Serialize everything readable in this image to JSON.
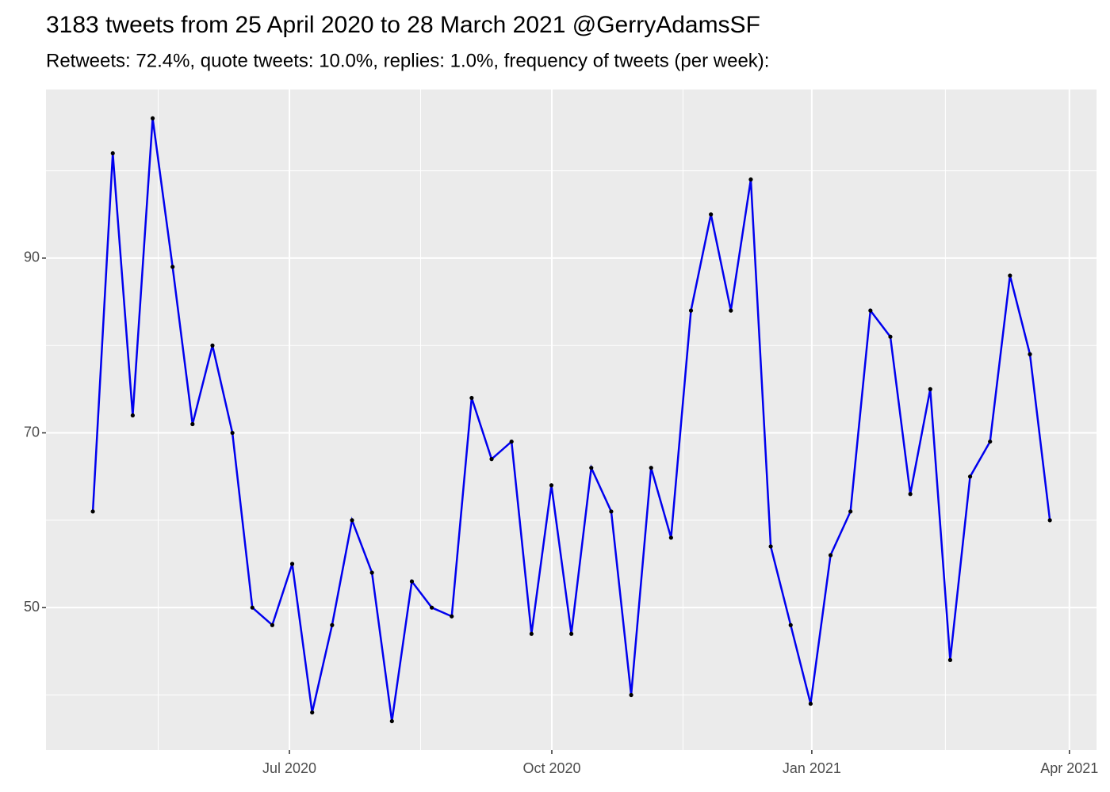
{
  "chart_data": {
    "type": "line",
    "title": "3183 tweets from 25 April 2020 to 28 March 2021 @GerryAdamsSF",
    "subtitle": "Retweets: 72.4%, quote tweets: 10.0%, replies: 1.0%, frequency of tweets (per week):",
    "x": [
      0,
      1,
      2,
      3,
      4,
      5,
      6,
      7,
      8,
      9,
      10,
      11,
      12,
      13,
      14,
      15,
      16,
      17,
      18,
      19,
      20,
      21,
      22,
      23,
      24,
      25,
      26,
      27,
      28,
      29,
      30,
      31,
      32,
      33,
      34,
      35,
      36,
      37,
      38,
      39,
      40,
      41,
      42,
      43,
      44,
      45,
      46,
      47,
      48
    ],
    "series": [
      {
        "color": "#0000ee",
        "values": [
          61,
          102,
          72,
          106,
          89,
          71,
          80,
          70,
          50,
          48,
          55,
          38,
          48,
          60,
          54,
          37,
          53,
          50,
          49,
          74,
          67,
          69,
          47,
          64,
          47,
          66,
          61,
          40,
          66,
          58,
          84,
          95,
          84,
          99,
          57,
          48,
          39,
          56,
          61,
          84,
          81,
          63,
          75,
          44,
          65,
          69,
          88,
          79,
          60
        ]
      }
    ],
    "xlim": [
      -2.35,
      50.34
    ],
    "xticks": [
      {
        "value": 9.86,
        "label": "Jul 2020"
      },
      {
        "value": 23.02,
        "label": "Oct 2020"
      },
      {
        "value": 36.06,
        "label": "Jan 2021"
      },
      {
        "value": 48.98,
        "label": "Apr 2021"
      }
    ],
    "ylim": [
      33.7,
      109.3
    ],
    "yticks": [
      50,
      70,
      90
    ],
    "grid": true,
    "point_color": "#000000"
  }
}
